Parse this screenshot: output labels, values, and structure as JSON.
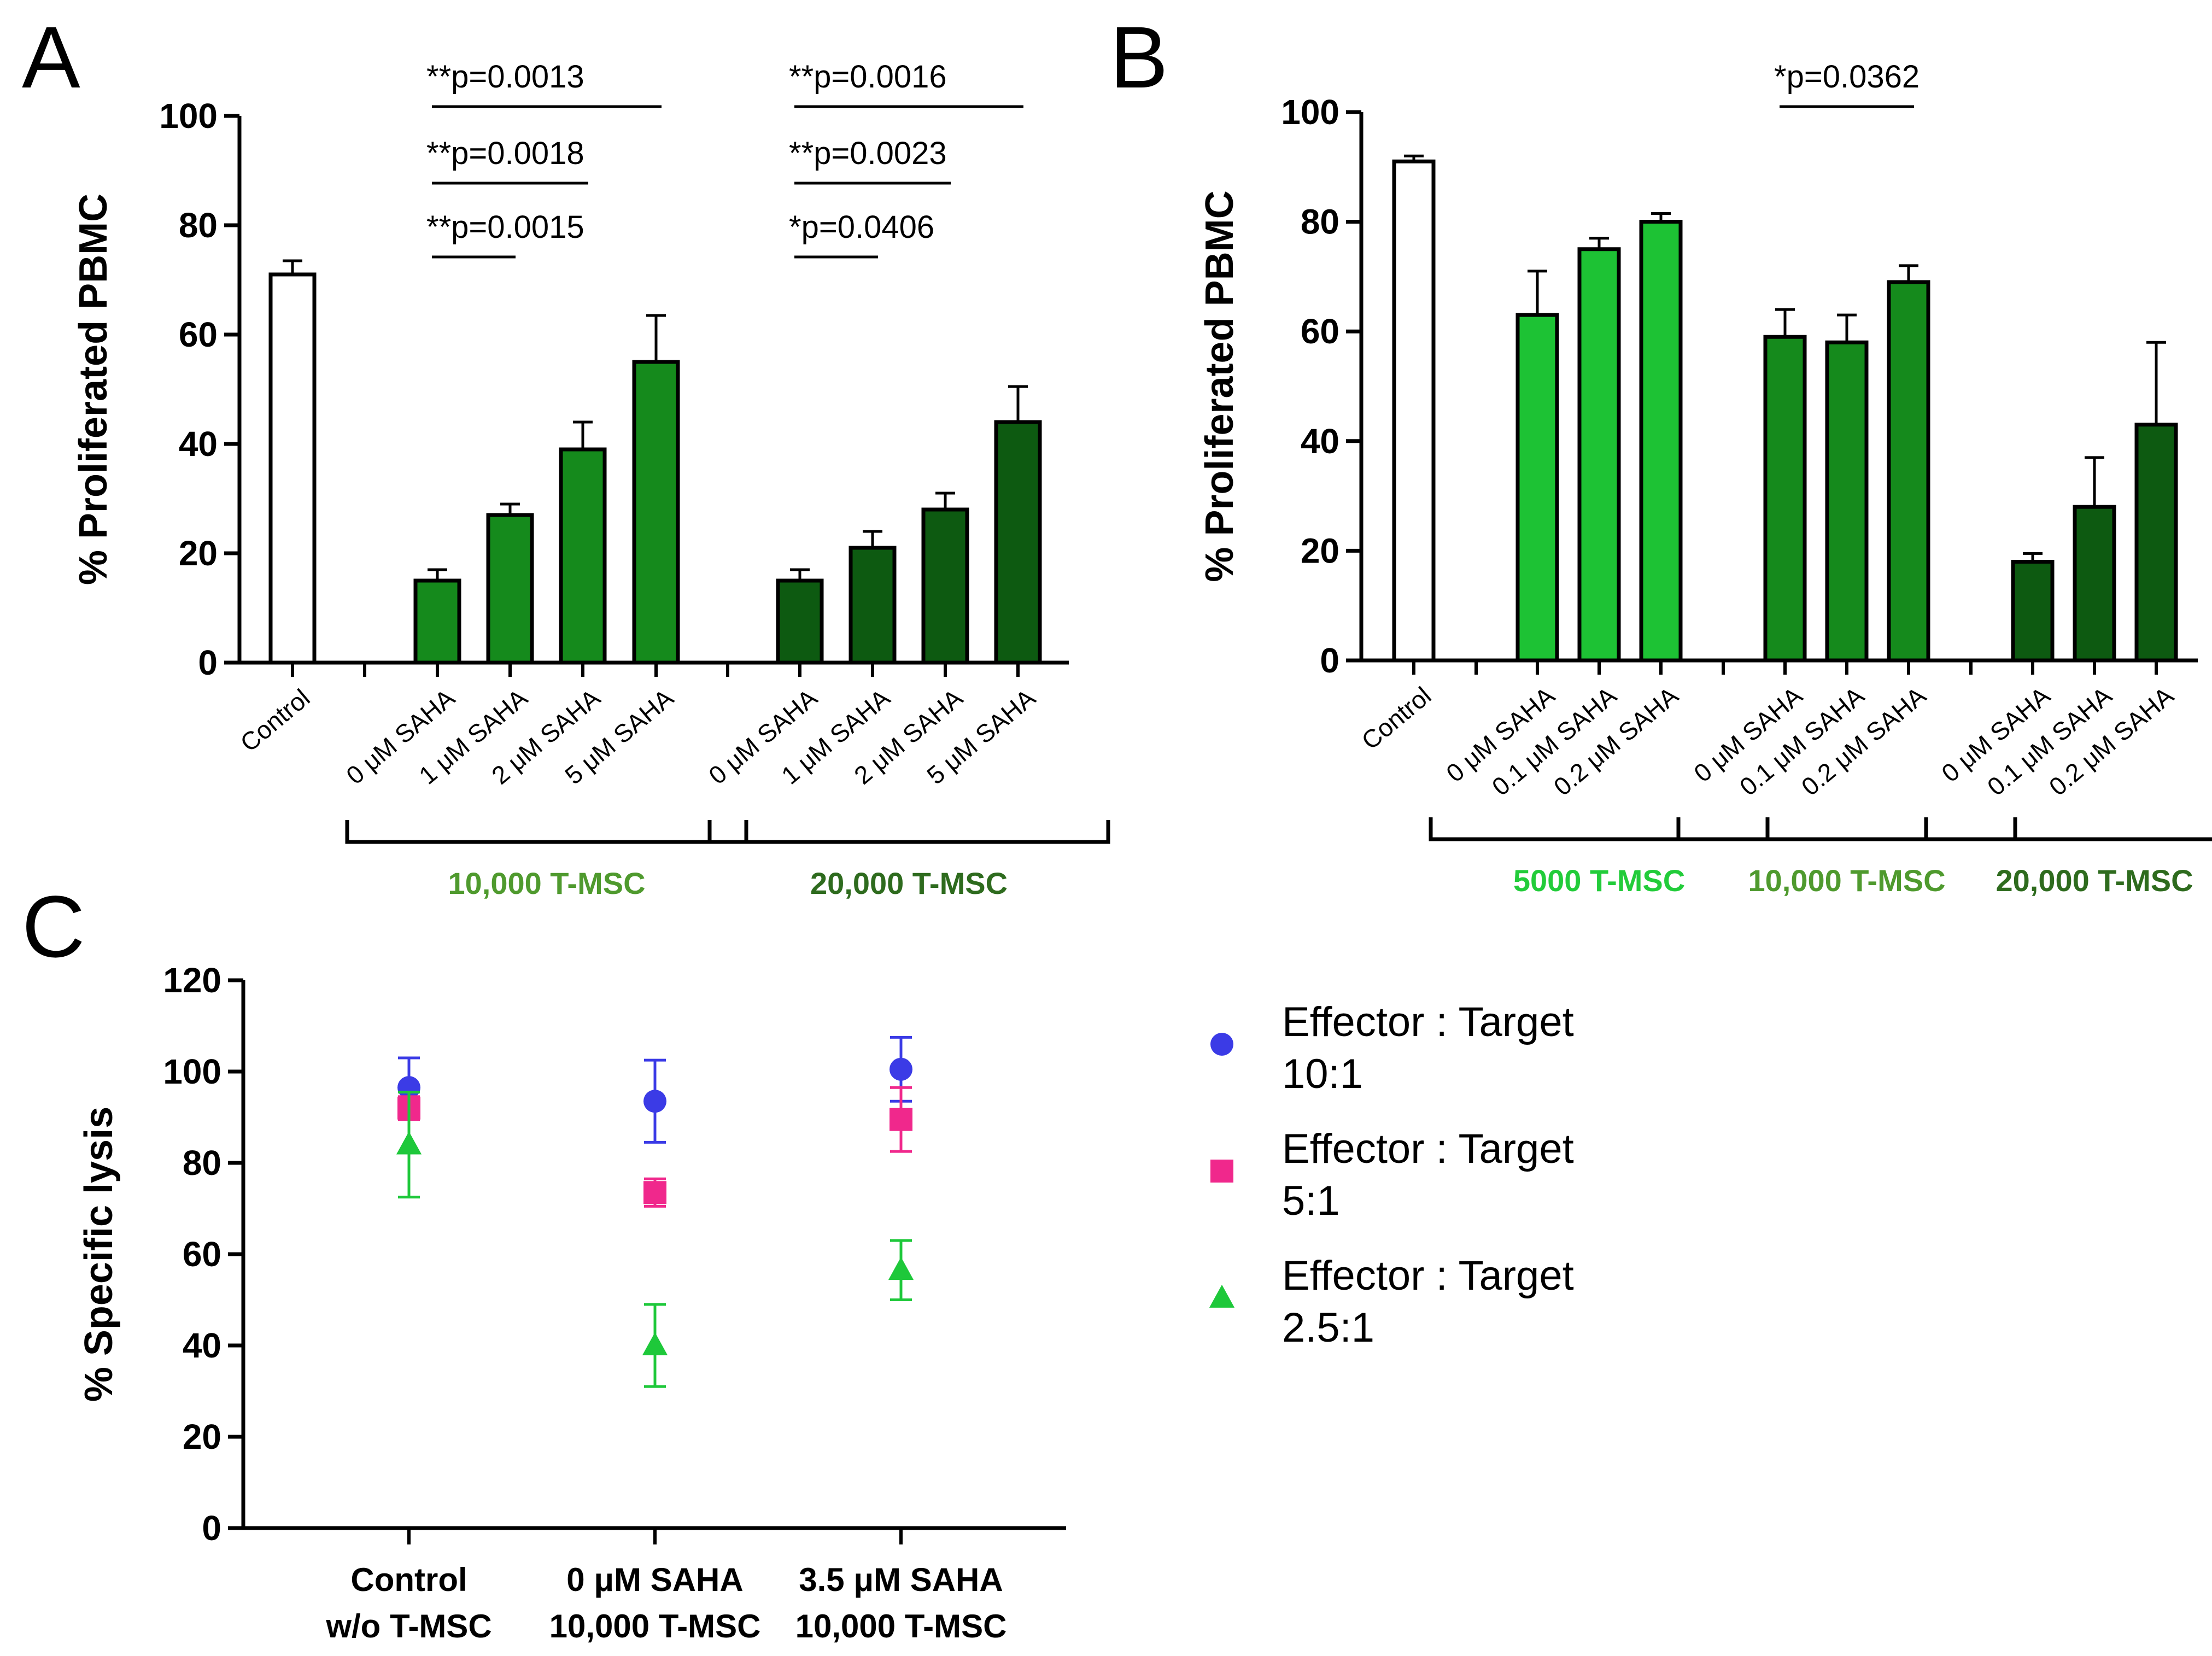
{
  "colors": {
    "axis": "#000000",
    "control_bar": "#ffffff",
    "green_5000": "#1dc234",
    "green_10000": "#158a1c",
    "green_20000": "#0d5a11",
    "group_label_5000": "#22cc3a",
    "group_label_10000": "#4f9a2e",
    "group_label_20000": "#2e6b1e",
    "series_10_1": "#3b3be6",
    "series_5_1": "#f0288c",
    "series_2_5_1": "#1ec83a"
  },
  "chart_data": [
    {
      "panel": "A",
      "type": "bar",
      "ylabel": "% Proliferated PBMC",
      "ylim": [
        0,
        100
      ],
      "yticks": [
        "0",
        "20",
        "40",
        "60",
        "80",
        "100"
      ],
      "categories": [
        "Control",
        "0 μM SAHA",
        "1 μM SAHA",
        "2 μM SAHA",
        "5 μM SAHA",
        "0 μM SAHA",
        "1 μM SAHA",
        "2 μM SAHA",
        "5 μM SAHA"
      ],
      "values": [
        71,
        15,
        27,
        39,
        55,
        15,
        21,
        28,
        44
      ],
      "errors": [
        2.5,
        2,
        2,
        5,
        8.5,
        2,
        3,
        3,
        6.5
      ],
      "groups": [
        {
          "label": "10,000 T-MSC",
          "members": [
            1,
            2,
            3,
            4
          ]
        },
        {
          "label": "20,000 T-MSC",
          "members": [
            5,
            6,
            7,
            8
          ]
        }
      ],
      "annotations": [
        {
          "text": "**p=0.0013",
          "from": 1,
          "to": 4
        },
        {
          "text": "**p=0.0018",
          "from": 1,
          "to": 3
        },
        {
          "text": "**p=0.0015",
          "from": 1,
          "to": 2
        },
        {
          "text": "**p=0.0016",
          "from": 5,
          "to": 8
        },
        {
          "text": "**p=0.0023",
          "from": 5,
          "to": 7
        },
        {
          "text": "*p=0.0406",
          "from": 5,
          "to": 6
        }
      ]
    },
    {
      "panel": "B",
      "type": "bar",
      "ylabel": "% Proliferated PBMC",
      "ylim": [
        0,
        100
      ],
      "yticks": [
        "0",
        "20",
        "40",
        "60",
        "80",
        "100"
      ],
      "categories": [
        "Control",
        "0 μM SAHA",
        "0.1 μM SAHA",
        "0.2 μM SAHA",
        "0 μM SAHA",
        "0.1 μM SAHA",
        "0.2 μM SAHA",
        "0 μM SAHA",
        "0.1 μM SAHA",
        "0.2 μM SAHA"
      ],
      "values": [
        91,
        63,
        75,
        80,
        59,
        58,
        69,
        18,
        28,
        43
      ],
      "errors": [
        1,
        8,
        2,
        1.5,
        5,
        5,
        3,
        1.5,
        9,
        15
      ],
      "groups": [
        {
          "label": "5000 T-MSC",
          "members": [
            1,
            2,
            3
          ]
        },
        {
          "label": "10,000 T-MSC",
          "members": [
            4,
            5,
            6
          ]
        },
        {
          "label": "20,000 T-MSC",
          "members": [
            7,
            8,
            9
          ]
        }
      ],
      "annotations": [
        {
          "text": "*p=0.0362",
          "from": 4,
          "to": 6
        }
      ]
    },
    {
      "panel": "C",
      "type": "scatter",
      "ylabel": "% Specific lysis",
      "ylim": [
        0,
        120
      ],
      "yticks": [
        "0",
        "20",
        "40",
        "60",
        "80",
        "100",
        "120"
      ],
      "categories": [
        [
          "Control",
          "w/o T-MSC"
        ],
        [
          "0 μM SAHA",
          "10,000 T-MSC"
        ],
        [
          "3.5 μM SAHA",
          "10,000 T-MSC"
        ]
      ],
      "series": [
        {
          "name": [
            "Effector : Target",
            "10:1"
          ],
          "marker": "circle",
          "values": [
            96.5,
            93.5,
            100.5
          ],
          "errors": [
            6.5,
            9,
            7
          ]
        },
        {
          "name": [
            "Effector : Target",
            "5:1"
          ],
          "marker": "square",
          "values": [
            92,
            73.5,
            89.5
          ],
          "errors": [
            2.5,
            3,
            7
          ]
        },
        {
          "name": [
            "Effector : Target",
            "2.5:1"
          ],
          "marker": "triangle",
          "values": [
            84,
            40,
            56.5
          ],
          "errors": [
            11.5,
            9,
            6.5
          ]
        }
      ],
      "legend": "right"
    }
  ]
}
